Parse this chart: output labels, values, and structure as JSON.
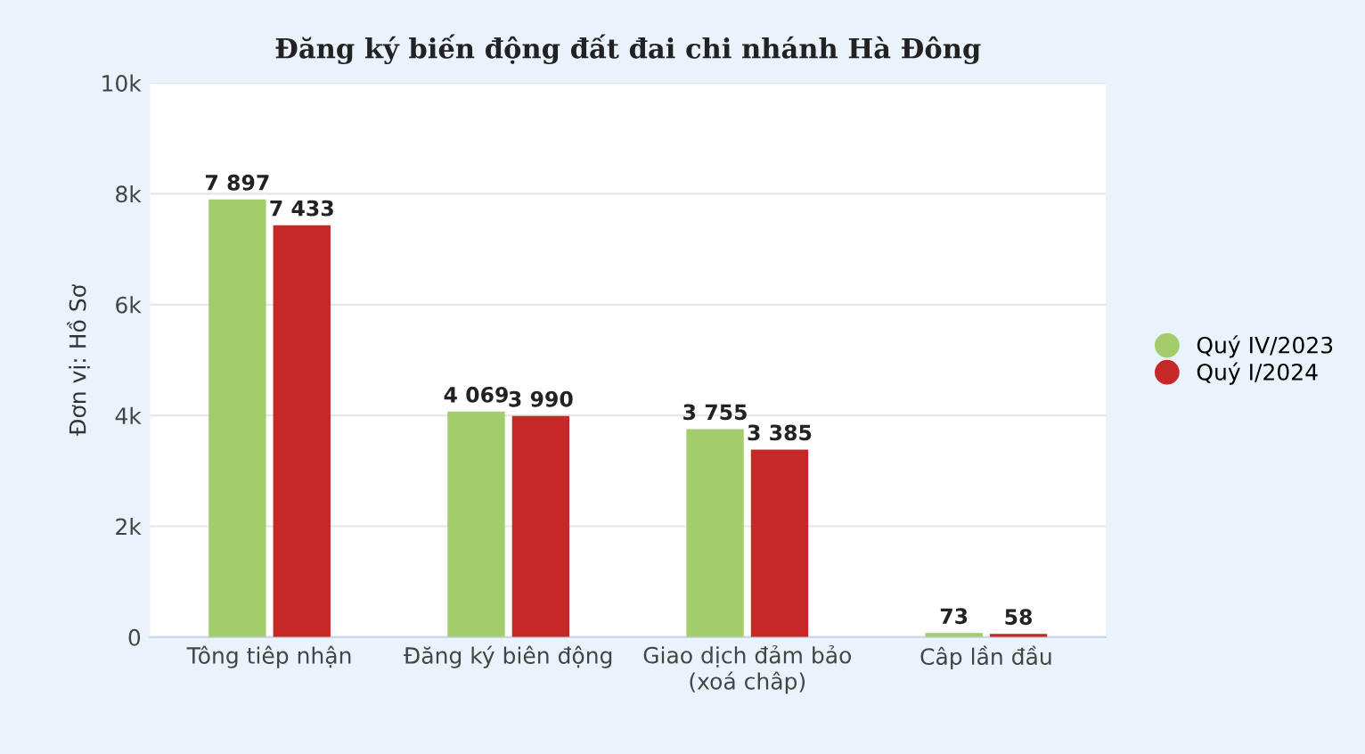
{
  "chart_data": {
    "type": "bar",
    "title": "Đăng ký biến động đất đai chi nhánh Hà Đông",
    "ylabel": "Đơn vị: Hồ Sơ",
    "categories": [
      "Tông tiêp nhận",
      "Đăng ký biên động",
      "Giao dịch đảm bảo\n(xoá châp)",
      "Câp lần đầu"
    ],
    "series": [
      {
        "name": "Quý IV/2023",
        "color": "#a3cc6a",
        "values": [
          7897,
          4069,
          3755,
          73
        ],
        "value_labels": [
          "7 897",
          "4 069",
          "3 755",
          "73"
        ]
      },
      {
        "name": "Quý I/2024",
        "color": "#c62828",
        "values": [
          7433,
          3990,
          3385,
          58
        ],
        "value_labels": [
          "7 433",
          "3 990",
          "3 385",
          "58"
        ]
      }
    ],
    "ylim": [
      0,
      10000
    ],
    "yticks": [
      {
        "value": 0,
        "label": "0"
      },
      {
        "value": 2000,
        "label": "2k"
      },
      {
        "value": 4000,
        "label": "4k"
      },
      {
        "value": 6000,
        "label": "6k"
      },
      {
        "value": 8000,
        "label": "8k"
      },
      {
        "value": 10000,
        "label": "10k"
      }
    ],
    "grid": "y",
    "legend": "right"
  }
}
